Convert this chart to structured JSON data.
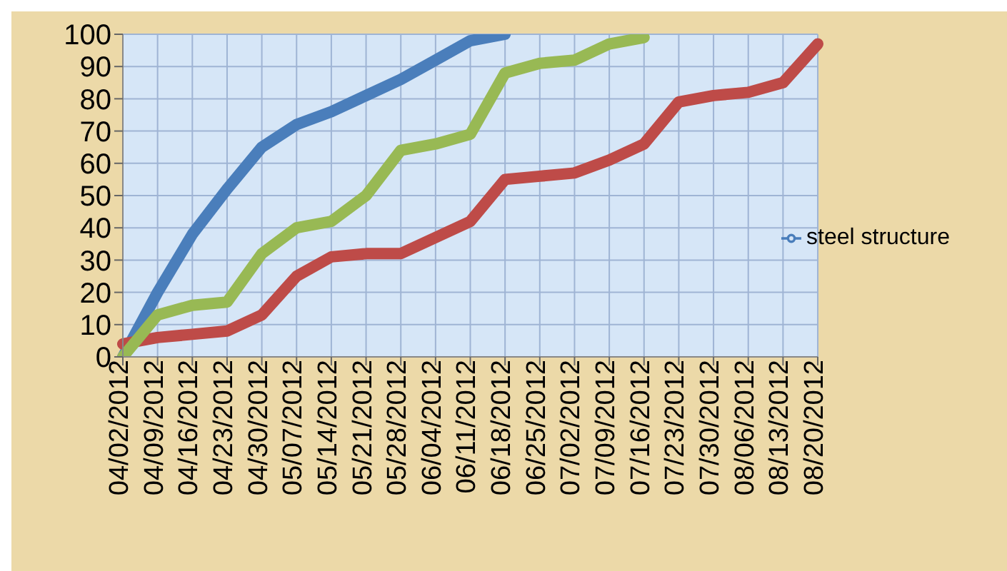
{
  "chart_data": {
    "type": "line",
    "categories": [
      "04/02/2012",
      "04/09/2012",
      "04/16/2012",
      "04/23/2012",
      "04/30/2012",
      "05/07/2012",
      "05/14/2012",
      "05/21/2012",
      "05/28/2012",
      "06/04/2012",
      "06/11/2012",
      "06/18/2012",
      "06/25/2012",
      "07/02/2012",
      "07/09/2012",
      "07/16/2012",
      "07/23/2012",
      "07/30/2012",
      "08/06/2012",
      "08/13/2012",
      "08/20/2012"
    ],
    "series": [
      {
        "name": "steel structure",
        "color": "#4a7ebb",
        "values": [
          0,
          20,
          38,
          52,
          65,
          72,
          76,
          81,
          86,
          92,
          98,
          100,
          null,
          null,
          null,
          null,
          null,
          null,
          null,
          null,
          null
        ]
      },
      {
        "color": "#be4b48",
        "values": [
          4,
          6,
          7,
          8,
          13,
          25,
          31,
          32,
          32,
          37,
          42,
          55,
          56,
          57,
          61,
          66,
          79,
          81,
          82,
          85,
          97
        ]
      },
      {
        "color": "#98b954",
        "values": [
          0,
          13,
          16,
          17,
          32,
          40,
          42,
          50,
          64,
          66,
          69,
          88,
          91,
          92,
          97,
          99,
          null,
          null,
          null,
          null,
          null
        ]
      }
    ],
    "ylim": [
      0,
      100
    ],
    "yticks": [
      0,
      10,
      20,
      30,
      40,
      50,
      60,
      70,
      80,
      90,
      100
    ],
    "grid": true,
    "legend": "right",
    "marker": "none",
    "line_style": "solid"
  }
}
